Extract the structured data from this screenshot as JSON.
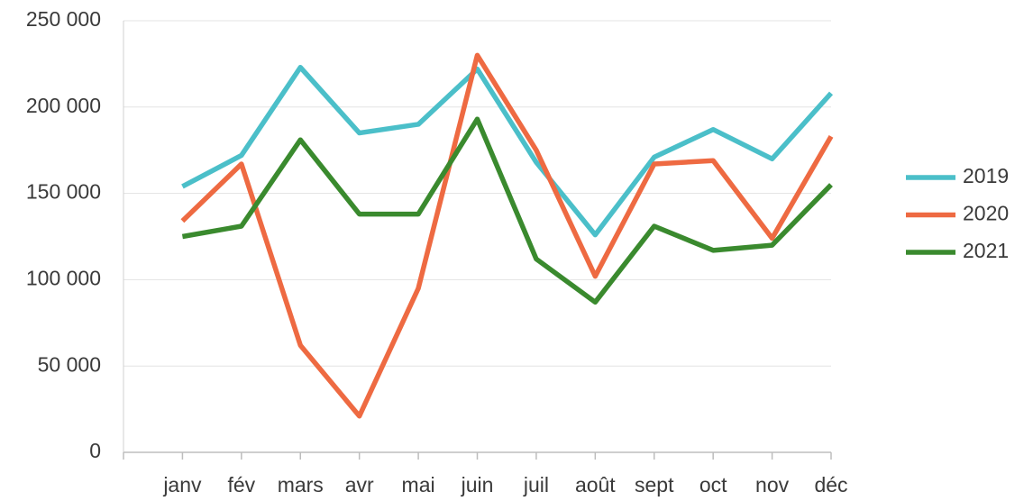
{
  "chart_data": {
    "type": "line",
    "categories": [
      "janv",
      "fév",
      "mars",
      "avr",
      "mai",
      "juin",
      "juil",
      "août",
      "sept",
      "oct",
      "nov",
      "déc"
    ],
    "series": [
      {
        "name": "2019",
        "color": "#4bbfc9",
        "values": [
          154000,
          172000,
          223000,
          185000,
          190000,
          222000,
          168000,
          126000,
          171000,
          187000,
          170000,
          208000
        ]
      },
      {
        "name": "2020",
        "color": "#ee6a42",
        "values": [
          134000,
          167000,
          62000,
          21000,
          95000,
          230000,
          175000,
          102000,
          167000,
          169000,
          124000,
          183000
        ]
      },
      {
        "name": "2021",
        "color": "#3a8a2e",
        "values": [
          125000,
          131000,
          181000,
          138000,
          138000,
          193000,
          112000,
          87000,
          131000,
          117000,
          120000,
          155000
        ]
      }
    ],
    "ylim": [
      0,
      250000
    ],
    "yticks": [
      0,
      {
        "value": 50000,
        "label": "50 000"
      },
      {
        "value": 100000,
        "label": "100 000"
      },
      {
        "value": 150000,
        "label": "150 000"
      },
      {
        "value": 200000,
        "label": "200 000"
      },
      {
        "value": 250000,
        "label": "250 000"
      }
    ],
    "grid": true,
    "legend": "right"
  }
}
